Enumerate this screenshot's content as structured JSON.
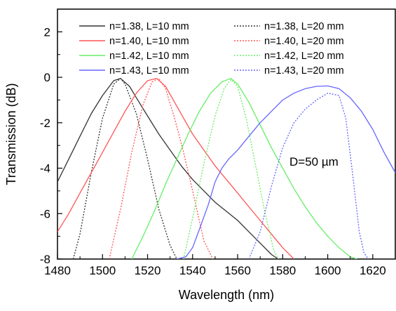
{
  "chart_data": {
    "type": "line",
    "xlabel": "Wavelength (nm)",
    "ylabel": "Transmission (dB)",
    "xlim": [
      1480,
      1630
    ],
    "ylim": [
      -8,
      3
    ],
    "x_ticks": [
      1480,
      1500,
      1520,
      1540,
      1560,
      1580,
      1600,
      1620
    ],
    "y_ticks": [
      2,
      0,
      -2,
      -4,
      -6,
      -8
    ],
    "grid": false,
    "legend_position": "top",
    "annotation": "D=50 µm",
    "series": [
      {
        "name": "n=1.38, L=10 mm",
        "color": "#333333",
        "dash": "solid",
        "x": [
          1480,
          1485,
          1490,
          1495,
          1500,
          1505,
          1508,
          1512,
          1515,
          1520,
          1525,
          1530,
          1535,
          1540,
          1545,
          1550,
          1555,
          1560,
          1565,
          1570,
          1575,
          1578
        ],
        "y": [
          -4.6,
          -3.6,
          -2.6,
          -1.6,
          -0.8,
          -0.15,
          -0.05,
          -0.4,
          -0.9,
          -1.7,
          -2.5,
          -3.2,
          -3.9,
          -4.5,
          -5.0,
          -5.5,
          -5.9,
          -6.3,
          -6.8,
          -7.3,
          -7.8,
          -8.0
        ]
      },
      {
        "name": "n=1.38, L=20 mm",
        "color": "#333333",
        "dash": "dotted",
        "x": [
          1487,
          1490,
          1495,
          1500,
          1505,
          1508,
          1510,
          1515,
          1520,
          1525,
          1530,
          1533
        ],
        "y": [
          -8.0,
          -6.9,
          -4.2,
          -1.8,
          -0.3,
          -0.05,
          -0.3,
          -1.6,
          -3.6,
          -5.8,
          -7.4,
          -8.0
        ]
      },
      {
        "name": "n=1.40, L=10 mm",
        "color": "#ff5555",
        "dash": "solid",
        "x": [
          1480,
          1485,
          1490,
          1495,
          1500,
          1505,
          1510,
          1515,
          1520,
          1524,
          1528,
          1532,
          1536,
          1540,
          1545,
          1550,
          1555,
          1560,
          1565,
          1570,
          1575,
          1580,
          1585
        ],
        "y": [
          -6.8,
          -6.0,
          -5.1,
          -4.2,
          -3.3,
          -2.4,
          -1.5,
          -0.7,
          -0.15,
          -0.05,
          -0.4,
          -1.1,
          -1.8,
          -2.5,
          -3.2,
          -3.9,
          -4.5,
          -5.1,
          -5.7,
          -6.3,
          -6.9,
          -7.5,
          -8.0
        ]
      },
      {
        "name": "n=1.40, L=20 mm",
        "color": "#ff5555",
        "dash": "dotted",
        "x": [
          1503,
          1508,
          1513,
          1518,
          1522,
          1525,
          1528,
          1532,
          1536,
          1540,
          1545,
          1549
        ],
        "y": [
          -8.0,
          -5.8,
          -3.3,
          -1.2,
          -0.2,
          -0.05,
          -0.5,
          -1.8,
          -3.3,
          -5.0,
          -7.2,
          -8.0
        ]
      },
      {
        "name": "n=1.42, L=10 mm",
        "color": "#66ee66",
        "dash": "solid",
        "x": [
          1513,
          1518,
          1523,
          1528,
          1533,
          1538,
          1543,
          1548,
          1553,
          1557,
          1560,
          1565,
          1570,
          1575,
          1580,
          1585,
          1590,
          1595,
          1600,
          1605,
          1610,
          1613
        ],
        "y": [
          -8.0,
          -7.0,
          -5.9,
          -4.7,
          -3.6,
          -2.5,
          -1.5,
          -0.7,
          -0.2,
          -0.05,
          -0.3,
          -1.1,
          -2.1,
          -3.1,
          -4.0,
          -4.9,
          -5.7,
          -6.4,
          -7.0,
          -7.5,
          -7.9,
          -8.0
        ]
      },
      {
        "name": "n=1.42, L=20 mm",
        "color": "#66ee66",
        "dash": "dotted",
        "x": [
          1536,
          1540,
          1545,
          1550,
          1554,
          1557,
          1560,
          1564,
          1568,
          1572,
          1576,
          1578
        ],
        "y": [
          -8.0,
          -6.2,
          -3.8,
          -1.7,
          -0.5,
          -0.1,
          -0.4,
          -1.9,
          -3.9,
          -5.9,
          -7.6,
          -8.0
        ]
      },
      {
        "name": "n=1.43, L=10 mm",
        "color": "#6666ff",
        "dash": "solid",
        "x": [
          1533,
          1537,
          1540,
          1543,
          1547,
          1550,
          1553,
          1556,
          1560,
          1565,
          1570,
          1575,
          1580,
          1585,
          1590,
          1595,
          1600,
          1605,
          1610,
          1615,
          1620,
          1625,
          1630
        ],
        "y": [
          -8.0,
          -7.9,
          -7.5,
          -6.7,
          -5.6,
          -4.6,
          -4.0,
          -3.6,
          -3.2,
          -2.6,
          -2.0,
          -1.5,
          -1.0,
          -0.7,
          -0.5,
          -0.4,
          -0.38,
          -0.5,
          -0.9,
          -1.5,
          -2.3,
          -3.3,
          -4.2
        ]
      },
      {
        "name": "n=1.43, L=20 mm",
        "color": "#6666ff",
        "dash": "dotted",
        "x": [
          1565,
          1570,
          1575,
          1580,
          1585,
          1590,
          1595,
          1600,
          1605,
          1608,
          1611,
          1614,
          1616,
          1618
        ],
        "y": [
          -8.0,
          -6.8,
          -4.8,
          -3.1,
          -2.0,
          -1.4,
          -1.0,
          -0.7,
          -0.8,
          -1.8,
          -4.2,
          -6.8,
          -7.7,
          -8.0
        ]
      }
    ]
  }
}
